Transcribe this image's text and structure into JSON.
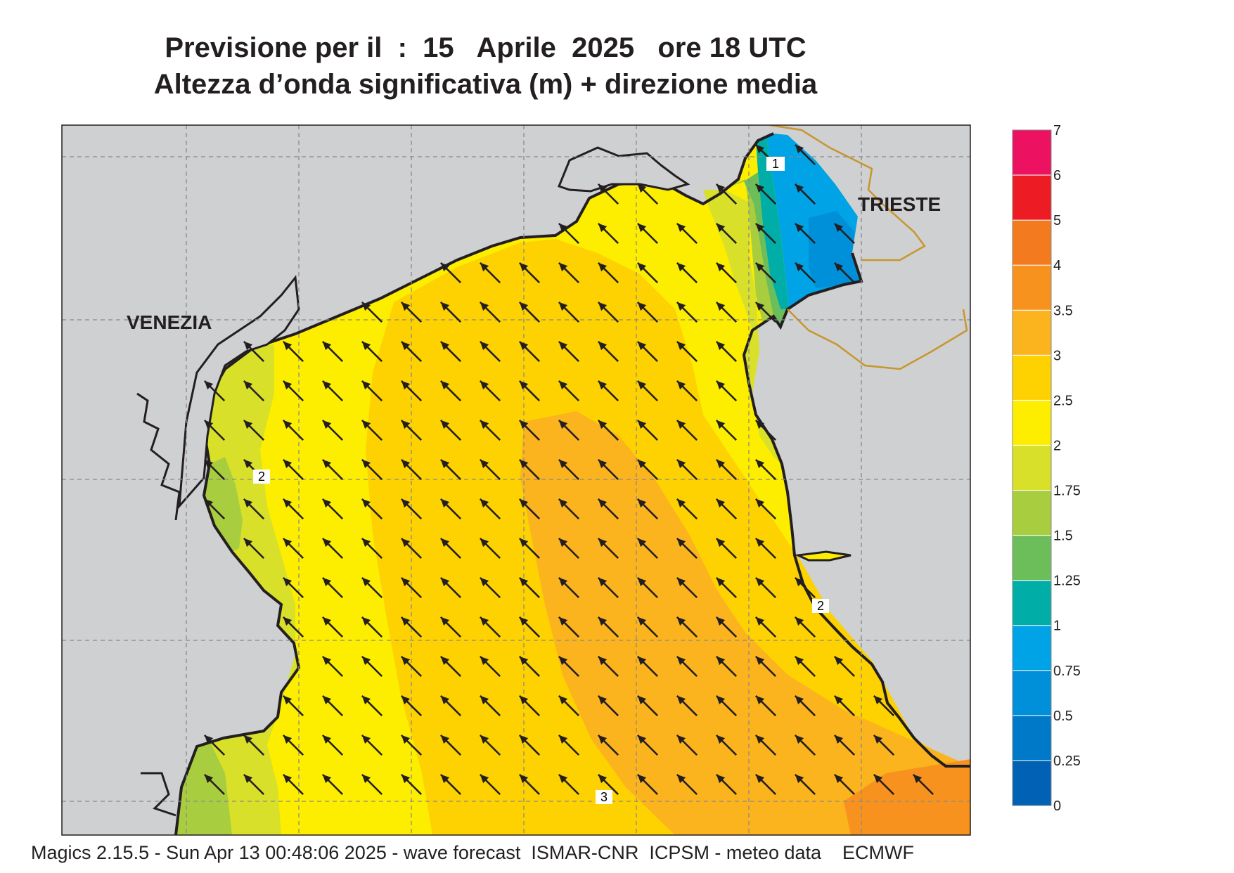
{
  "title": {
    "line1": "Previsione per il  :  15   Aprile  2025   ore 18 UTC",
    "line2": "Altezza d’onda significativa (m) + direzione media"
  },
  "places": {
    "venezia": "VENEZIA",
    "trieste": "TRIESTE"
  },
  "contour_labels": [
    "1",
    "2",
    "2",
    "3"
  ],
  "legend": {
    "levels": [
      "0",
      "0.25",
      "0.5",
      "0.75",
      "1",
      "1.25",
      "1.5",
      "1.75",
      "2",
      "2.5",
      "3",
      "3.5",
      "4",
      "5",
      "6",
      "7"
    ],
    "colors": [
      "#0061b5",
      "#0079c8",
      "#008fd9",
      "#00a3e6",
      "#00aea7",
      "#6cbe5a",
      "#a8cd3f",
      "#d8e02a",
      "#fdee00",
      "#fdd200",
      "#fbb31e",
      "#f7921e",
      "#f47a20",
      "#ed1c24",
      "#ec1261"
    ]
  },
  "wave_direction": "NW",
  "footer": "Magics 2.15.5 - Sun Apr 13 00:48:06 2025 - wave forecast  ISMAR-CNR  ICPSM - meteo data    ECMWF",
  "colors": {
    "land": "#cfd0d2",
    "coast": "#231f20",
    "border": "#c8962e"
  }
}
